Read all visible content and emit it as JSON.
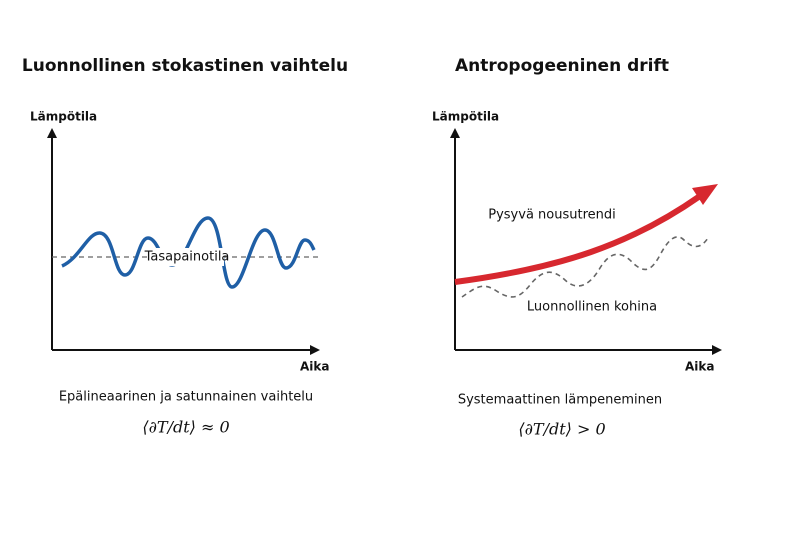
{
  "panels": [
    {
      "title": "Luonnollinen stokastinen vaihtelu",
      "y_label": "Lämpötila",
      "x_label": "Aika",
      "annotation": "Tasapainotila",
      "caption": "Epälineaarinen ja satunnainen vaihtelu",
      "formula": "⟨∂T/dt⟩ ≈ 0"
    },
    {
      "title": "Antropogeeninen drift",
      "y_label": "Lämpötila",
      "x_label": "Aika",
      "trend_label": "Pysyvä nousutrendi",
      "noise_label": "Luonnollinen kohina",
      "caption": "Systemaattinen lämpeneminen",
      "formula": "⟨∂T/dt⟩ > 0"
    }
  ]
}
